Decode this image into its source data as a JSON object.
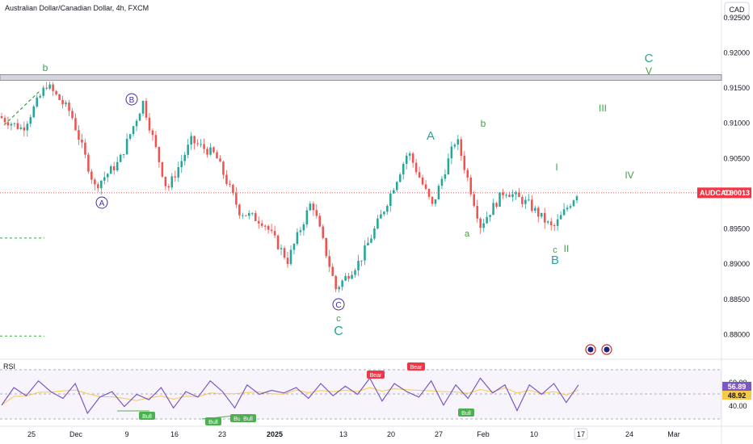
{
  "chart_header": {
    "title": "Australian Dollar/Canadian Dollar, 4h, FXCM",
    "currency": "CAD"
  },
  "price_axis": {
    "ticks": [
      "0.92500",
      "0.92000",
      "0.91500",
      "0.91000",
      "0.90500",
      "0.90000",
      "0.89500",
      "0.89000",
      "0.88500",
      "0.88000"
    ],
    "range": [
      0.8765,
      0.9275
    ]
  },
  "current_price": {
    "symbol": "AUDCAD",
    "value": "0.90013",
    "color": "#f23645"
  },
  "time_axis": {
    "labels": [
      "25",
      "Dec",
      "9",
      "16",
      "23",
      "2025",
      "13",
      "20",
      "27",
      "Feb",
      "10",
      "17",
      "24",
      "Mar"
    ],
    "highlighted_label": "17"
  },
  "resistance_zone": {
    "from": 0.9161,
    "to": 0.9169
  },
  "dashed_support_levels": [
    0.8937,
    0.8798
  ],
  "wave_labels": [
    {
      "text": "b",
      "style": "plain",
      "color": "#43a047"
    },
    {
      "text": "A",
      "style": "circled",
      "color": "#3f2fa0"
    },
    {
      "text": "B",
      "style": "circled",
      "color": "#3f2fa0"
    },
    {
      "text": "C",
      "style": "circled",
      "color": "#3f2fa0"
    },
    {
      "text": "c",
      "style": "plain",
      "color": "#43a047"
    },
    {
      "text": "C",
      "style": "plain",
      "color": "#26a69a"
    },
    {
      "text": "A",
      "style": "plain",
      "color": "#26a69a"
    },
    {
      "text": "a",
      "style": "plain",
      "color": "#43a047"
    },
    {
      "text": "b",
      "style": "plain",
      "color": "#43a047"
    },
    {
      "text": "I",
      "style": "plain",
      "color": "#43a047"
    },
    {
      "text": "c",
      "style": "plain",
      "color": "#43a047"
    },
    {
      "text": "II",
      "style": "plain",
      "color": "#43a047"
    },
    {
      "text": "B",
      "style": "plain",
      "color": "#26a69a"
    },
    {
      "text": "III",
      "style": "plain",
      "color": "#43a047"
    },
    {
      "text": "IV",
      "style": "plain",
      "color": "#43a047"
    },
    {
      "text": "V",
      "style": "plain",
      "color": "#43a047"
    },
    {
      "text": "C",
      "style": "plain",
      "color": "#26a69a"
    }
  ],
  "rsi_panel": {
    "title": "RSI",
    "rsi_value": "56.89",
    "ma_value": "48.92",
    "axis_ticks": [
      "60.00",
      "40.00"
    ],
    "rsi_color": "#7e57c2",
    "ma_color": "#f7c948",
    "badges": [
      {
        "text": "Bull",
        "color": "#4caf50"
      },
      {
        "text": "Bull",
        "color": "#4caf50"
      },
      {
        "text": "Bull",
        "color": "#4caf50"
      },
      {
        "text": "Bull",
        "color": "#4caf50"
      },
      {
        "text": "Bear",
        "color": "#f23645"
      },
      {
        "text": "Bear",
        "color": "#f23645"
      },
      {
        "text": "Bull",
        "color": "#4caf50"
      }
    ]
  },
  "chart_data": {
    "type": "candlestick",
    "title": "Australian Dollar/Canadian Dollar, 4h, FXCM",
    "ylim": [
      0.8765,
      0.9275
    ],
    "x_ticks": [
      "25",
      "Dec",
      "9",
      "16",
      "23",
      "2025",
      "13",
      "20",
      "27",
      "Feb",
      "10",
      "17",
      "24",
      "Mar"
    ],
    "path_points": [
      {
        "label": "Nov 22",
        "value": 0.911
      },
      {
        "label": "Nov 26",
        "value": 0.9092
      },
      {
        "label": "Nov 28",
        "value": 0.9155
      },
      {
        "label": "Dec 4",
        "value": 0.9115
      },
      {
        "label": "Dec 8",
        "value": 0.901
      },
      {
        "label": "Dec 12",
        "value": 0.9045
      },
      {
        "label": "Dec 13",
        "value": 0.913
      },
      {
        "label": "Dec 16",
        "value": 0.9005
      },
      {
        "label": "Dec 17",
        "value": 0.9075
      },
      {
        "label": "Dec 22",
        "value": 0.9055
      },
      {
        "label": "Dec 26",
        "value": 0.8975
      },
      {
        "label": "Jan 1",
        "value": 0.896
      },
      {
        "label": "Jan 5",
        "value": 0.8905
      },
      {
        "label": "Jan 9",
        "value": 0.899
      },
      {
        "label": "Jan 13",
        "value": 0.8865
      },
      {
        "label": "Jan 17",
        "value": 0.8905
      },
      {
        "label": "Jan 22",
        "value": 0.8978
      },
      {
        "label": "Jan 28",
        "value": 0.906
      },
      {
        "label": "Feb 1",
        "value": 0.8982
      },
      {
        "label": "Feb 4",
        "value": 0.908
      },
      {
        "label": "Feb 6",
        "value": 0.8955
      },
      {
        "label": "Feb 10",
        "value": 0.9005
      },
      {
        "label": "Feb 13",
        "value": 0.8985
      },
      {
        "label": "Feb 14",
        "value": 0.895
      },
      {
        "label": "Feb 17",
        "value": 0.9001
      }
    ],
    "rsi_path": [
      42,
      55,
      49,
      60,
      52,
      47,
      58,
      36,
      48,
      52,
      41,
      50,
      46,
      55,
      40,
      52,
      48,
      60,
      52,
      40,
      57,
      50,
      53,
      51,
      55,
      47,
      58,
      49,
      56,
      50,
      62,
      45,
      58,
      52,
      48,
      60,
      42,
      57,
      47,
      62,
      51,
      57,
      38,
      57,
      50,
      58,
      44,
      57
    ]
  }
}
